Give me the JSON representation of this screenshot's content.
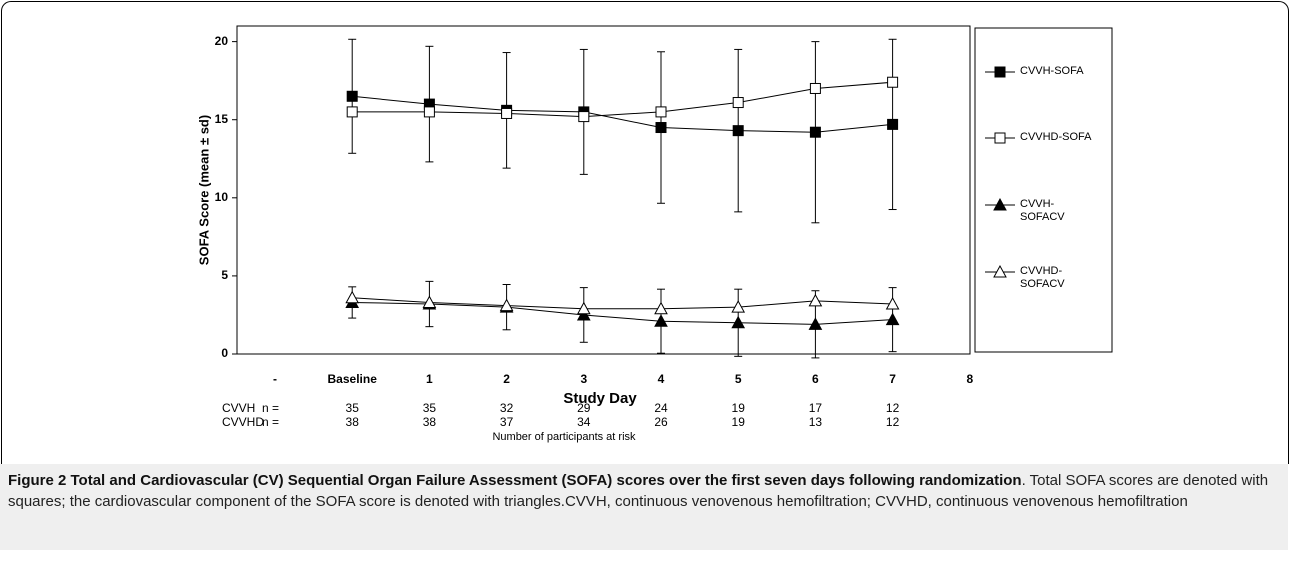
{
  "chart_data": {
    "type": "line",
    "ylabel": "SOFA Score (mean ± sd)",
    "xlabel": "Study Day",
    "categories": [
      "-",
      "Baseline",
      "1",
      "2",
      "3",
      "4",
      "5",
      "6",
      "7",
      "8"
    ],
    "ylim": [
      0,
      21
    ],
    "yticks": [
      0,
      5,
      10,
      15,
      20
    ],
    "series": [
      {
        "name": "CVVH-SOFA",
        "color": "#000000",
        "marker": "square",
        "filled": true,
        "values": [
          null,
          16.5,
          16.0,
          15.6,
          15.5,
          14.5,
          14.3,
          14.2,
          14.7,
          null
        ],
        "errors": [
          null,
          3.65,
          3.7,
          3.7,
          4.0,
          4.85,
          5.2,
          5.8,
          5.45,
          null
        ]
      },
      {
        "name": "CVVHD-SOFA",
        "color": "#000000",
        "marker": "square",
        "filled": false,
        "values": [
          null,
          15.5,
          15.5,
          15.4,
          15.2,
          15.5,
          16.1,
          17.0,
          17.4,
          null
        ]
      },
      {
        "name": "CVVH-SOFACV",
        "color": "#000000",
        "marker": "triangle",
        "filled": true,
        "values": [
          null,
          3.3,
          3.2,
          3.0,
          2.5,
          2.1,
          2.0,
          1.9,
          2.2,
          null
        ],
        "errors": [
          null,
          1.0,
          1.45,
          1.45,
          1.75,
          2.05,
          2.15,
          2.15,
          2.05,
          null
        ]
      },
      {
        "name": "CVVHD-SOFACV",
        "color": "#000000",
        "marker": "triangle",
        "filled": false,
        "values": [
          null,
          3.6,
          3.3,
          3.1,
          2.9,
          2.9,
          3.0,
          3.4,
          3.2,
          null
        ]
      }
    ]
  },
  "risk_table": {
    "rows": [
      {
        "group": "CVVH",
        "label": "n =",
        "counts": [
          35,
          35,
          32,
          29,
          24,
          19,
          17,
          12
        ]
      },
      {
        "group": "CVVHD",
        "label": "n =",
        "counts": [
          38,
          38,
          37,
          34,
          26,
          19,
          13,
          12
        ]
      }
    ],
    "caption": "Number of participants at risk"
  },
  "figure_caption": {
    "title": "Figure 2 Total and Cardiovascular (CV) Sequential Organ Failure Assessment (SOFA) scores over the first seven days following randomization",
    "text": ". Total SOFA scores are denoted with squares; the cardiovascular component of the SOFA score is denoted with triangles.CVVH, continuous venovenous hemofiltration; CVVHD, continuous venovenous hemofiltration"
  }
}
